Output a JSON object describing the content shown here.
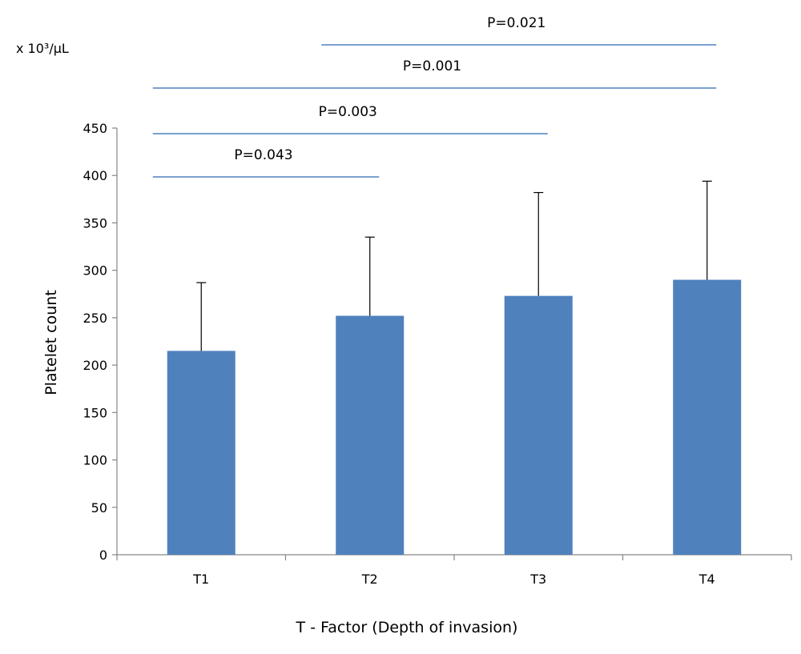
{
  "chart_data": {
    "type": "bar",
    "categories": [
      "T1",
      "T2",
      "T3",
      "T4"
    ],
    "values": [
      215,
      252,
      273,
      290
    ],
    "error_upper": [
      287,
      335,
      382,
      394
    ],
    "xlabel": "T - Factor (Depth of invasion)",
    "ylabel": "Platelet count",
    "unit_label": "x 10³/µL",
    "ylim": [
      0,
      450
    ],
    "yticks": [
      0,
      50,
      100,
      150,
      200,
      250,
      300,
      350,
      400,
      450
    ],
    "bar_color": "#4F81BD",
    "comparison_color": "#4F81BD",
    "grid": false,
    "legend": "none",
    "comparisons": [
      {
        "from": "T1",
        "to": "T2",
        "label": "P=0.043"
      },
      {
        "from": "T1",
        "to": "T3",
        "label": "P=0.003"
      },
      {
        "from": "T1",
        "to": "T4",
        "label": "P=0.001"
      },
      {
        "from": "T2",
        "to": "T4",
        "label": "P=0.021"
      }
    ]
  }
}
